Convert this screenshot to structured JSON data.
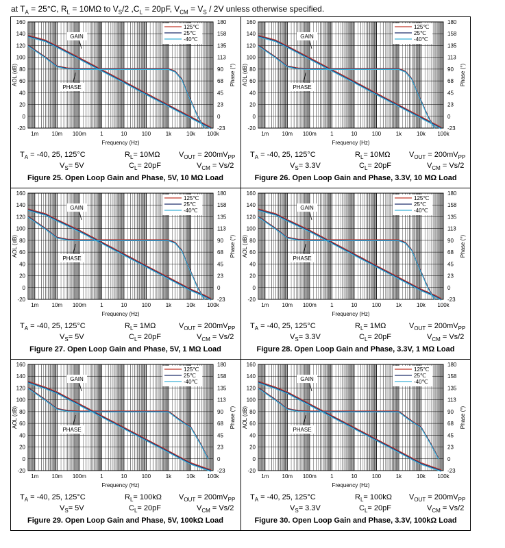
{
  "header": {
    "prefix": "at T",
    "sub_a": "A",
    "text": " = 25°C, R",
    "sub_l": "L",
    "text2": " = 10MΩ to V",
    "sub_s": "S",
    "text3": "/2 ,C",
    "sub_l2": "L",
    "text4": " = 20pF, V",
    "sub_cm": "CM",
    "text5": " = V",
    "sub_s2": "S",
    "text6": " / 2V unless otherwise specified."
  },
  "common": {
    "ylabel": "AOL (dB)",
    "y2label": "Phase (°)",
    "xlabel": "Frequency (Hz)",
    "y_ticks": [
      "160",
      "140",
      "120",
      "100",
      "80",
      "60",
      "40",
      "20",
      "0",
      "-20"
    ],
    "y2_ticks": [
      "180",
      "158",
      "135",
      "113",
      "90",
      "68",
      "45",
      "23",
      "0",
      "-23"
    ],
    "x_ticks": [
      "1m",
      "10m",
      "100m",
      "1",
      "10",
      "100",
      "1k",
      "10k",
      "100k"
    ],
    "gain_label": "GAIN",
    "phase_label": "PHASE",
    "legend": [
      "125℃",
      "25℃",
      "-40℃"
    ],
    "colors": {
      "t125": "#c0392b",
      "t25": "#1f2f6b",
      "tm40": "#3bb0d8",
      "grid": "#000000"
    },
    "ta_text": "T",
    "ta_sub": "A",
    "ta_val": " = -40, 25, 125°C",
    "vout_text": "V",
    "vout_sub": "OUT",
    "vout_val": " = 200mV",
    "vout_sub2": "PP",
    "vcm_text": "V",
    "vcm_sub": "CM",
    "vcm_val": " = Vs/2",
    "cl_text": "C",
    "cl_sub": "L",
    "cl_val": "= 20pF",
    "rl_text": "R",
    "rl_sub": "L",
    "vs_text": "V",
    "vs_sub": "S"
  },
  "figures": [
    {
      "caption": "Figure 25. Open Loop Gain and Phase, 5V, 10 MΩ Load",
      "vs_val": "= 5V",
      "rl_val": "= 10MΩ"
    },
    {
      "caption": "Figure 26. Open Loop Gain and Phase, 3.3V, 10 MΩ Load",
      "vs_val": "= 3.3V",
      "rl_val": "= 10MΩ"
    },
    {
      "caption": "Figure 27. Open Loop Gain and Phase, 5V, 1 MΩ Load",
      "vs_val": "= 5V",
      "rl_val": "= 1MΩ"
    },
    {
      "caption": "Figure 28. Open Loop Gain and Phase, 3.3V, 1 MΩ Load",
      "vs_val": "= 3.3V",
      "rl_val": "= 1MΩ"
    },
    {
      "caption": "Figure 29. Open Loop Gain and Phase, 5V, 100kΩ Load",
      "vs_val": "= 5V",
      "rl_val": "= 100kΩ"
    },
    {
      "caption": "Figure 30. Open Loop Gain and Phase, 3.3V, 100kΩ Load",
      "vs_val": "= 3.3V",
      "rl_val": "= 100kΩ"
    }
  ],
  "chart_data": [
    {
      "type": "line",
      "title": "Figure 25",
      "xscale": "log",
      "xlim": [
        0.0005,
        100000
      ],
      "ylim": [
        -20,
        160
      ],
      "y2lim": [
        -23,
        180
      ],
      "series": [
        {
          "name": "Gain",
          "x": [
            0.0005,
            0.003,
            0.01,
            0.1,
            1,
            10,
            100,
            1000,
            10000,
            40000,
            80000
          ],
          "y": [
            136,
            128,
            118,
            98,
            78,
            58,
            38,
            18,
            -2,
            -14,
            -20
          ]
        },
        {
          "name": "Phase",
          "x": [
            0.0005,
            0.003,
            0.01,
            0.03,
            0.1,
            1,
            10,
            100,
            1000,
            2000,
            4000,
            7000,
            20000,
            40000
          ],
          "y": [
            135,
            112,
            95,
            91,
            90,
            90,
            90,
            90,
            90,
            85,
            70,
            45,
            0,
            -23
          ]
        }
      ]
    },
    {
      "type": "line",
      "title": "Figure 26",
      "xscale": "log",
      "xlim": [
        0.0005,
        100000
      ],
      "ylim": [
        -20,
        160
      ],
      "y2lim": [
        -23,
        180
      ],
      "series": [
        {
          "name": "Gain",
          "x": [
            0.0005,
            0.003,
            0.01,
            0.1,
            1,
            10,
            100,
            1000,
            10000,
            40000,
            80000
          ],
          "y": [
            136,
            128,
            118,
            98,
            78,
            58,
            38,
            18,
            -2,
            -14,
            -20
          ]
        },
        {
          "name": "Phase",
          "x": [
            0.0005,
            0.003,
            0.01,
            0.03,
            0.1,
            1,
            10,
            100,
            1000,
            2000,
            4000,
            7000,
            20000,
            40000
          ],
          "y": [
            135,
            112,
            95,
            91,
            90,
            90,
            90,
            90,
            90,
            85,
            70,
            45,
            0,
            -23
          ]
        }
      ]
    },
    {
      "type": "line",
      "title": "Figure 27",
      "xscale": "log",
      "xlim": [
        0.0005,
        100000
      ],
      "ylim": [
        -20,
        160
      ],
      "y2lim": [
        -23,
        180
      ],
      "series": [
        {
          "name": "Gain",
          "x": [
            0.0005,
            0.003,
            0.01,
            0.1,
            1,
            10,
            100,
            1000,
            10000,
            40000,
            80000
          ],
          "y": [
            132,
            124,
            114,
            96,
            76,
            56,
            36,
            16,
            -4,
            -14,
            -20
          ]
        },
        {
          "name": "Phase",
          "x": [
            0.0005,
            0.003,
            0.01,
            0.03,
            0.1,
            1,
            10,
            100,
            1000,
            2000,
            4000,
            7000,
            20000,
            40000
          ],
          "y": [
            135,
            112,
            95,
            91,
            90,
            90,
            90,
            90,
            90,
            85,
            70,
            45,
            0,
            -23
          ]
        }
      ]
    },
    {
      "type": "line",
      "title": "Figure 28",
      "xscale": "log",
      "xlim": [
        0.0005,
        100000
      ],
      "ylim": [
        -20,
        160
      ],
      "y2lim": [
        -23,
        180
      ],
      "series": [
        {
          "name": "Gain",
          "x": [
            0.0005,
            0.003,
            0.01,
            0.1,
            1,
            10,
            100,
            1000,
            10000,
            40000,
            80000
          ],
          "y": [
            132,
            124,
            114,
            96,
            76,
            56,
            36,
            16,
            -4,
            -14,
            -20
          ]
        },
        {
          "name": "Phase",
          "x": [
            0.0005,
            0.003,
            0.01,
            0.03,
            0.1,
            1,
            10,
            100,
            1000,
            2000,
            4000,
            7000,
            20000,
            40000
          ],
          "y": [
            135,
            112,
            95,
            91,
            90,
            90,
            90,
            90,
            90,
            85,
            70,
            45,
            0,
            -23
          ]
        }
      ]
    },
    {
      "type": "line",
      "title": "Figure 29",
      "xscale": "log",
      "xlim": [
        0.0005,
        100000
      ],
      "ylim": [
        -20,
        160
      ],
      "y2lim": [
        -23,
        180
      ],
      "series": [
        {
          "name": "Gain",
          "x": [
            0.0005,
            0.003,
            0.01,
            0.1,
            1,
            10,
            100,
            1000,
            10000,
            40000,
            80000
          ],
          "y": [
            130,
            120,
            112,
            92,
            72,
            52,
            32,
            12,
            -8,
            -16,
            -20
          ]
        },
        {
          "name": "Phase",
          "x": [
            0.0005,
            0.003,
            0.01,
            0.03,
            0.1,
            1,
            10,
            100,
            1000,
            2000,
            5000,
            10000,
            30000,
            60000
          ],
          "y": [
            135,
            112,
            95,
            91,
            90,
            90,
            90,
            90,
            90,
            80,
            68,
            60,
            25,
            0
          ]
        }
      ]
    },
    {
      "type": "line",
      "title": "Figure 30",
      "xscale": "log",
      "xlim": [
        0.0005,
        100000
      ],
      "ylim": [
        -20,
        160
      ],
      "y2lim": [
        -23,
        180
      ],
      "series": [
        {
          "name": "Gain",
          "x": [
            0.0005,
            0.003,
            0.01,
            0.1,
            1,
            10,
            100,
            1000,
            10000,
            40000,
            80000
          ],
          "y": [
            130,
            120,
            112,
            92,
            72,
            52,
            32,
            12,
            -8,
            -16,
            -20
          ]
        },
        {
          "name": "Phase",
          "x": [
            0.0005,
            0.003,
            0.01,
            0.03,
            0.1,
            1,
            10,
            100,
            1000,
            2000,
            5000,
            10000,
            30000,
            60000
          ],
          "y": [
            135,
            112,
            95,
            91,
            90,
            90,
            90,
            90,
            90,
            80,
            68,
            60,
            25,
            0
          ]
        }
      ]
    }
  ]
}
